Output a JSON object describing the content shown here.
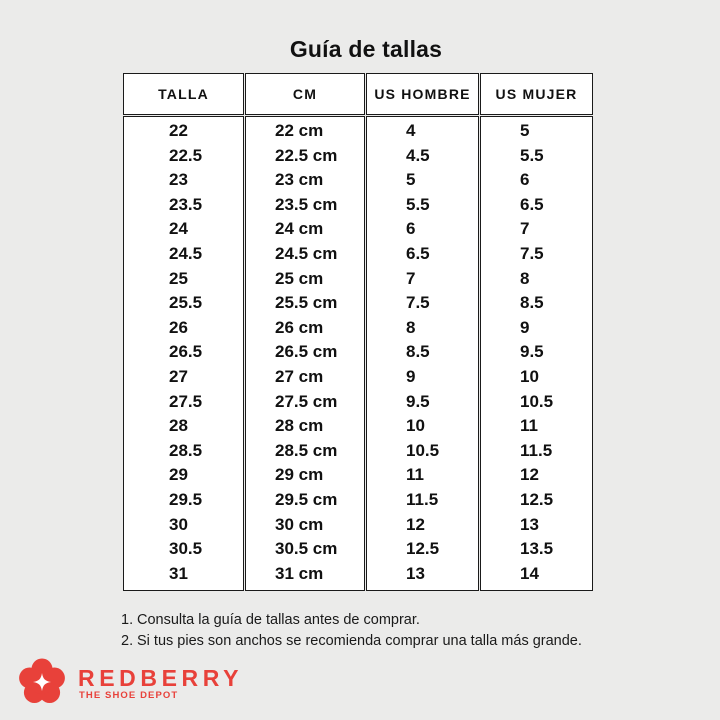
{
  "title": "Guía de tallas",
  "headers": [
    "TALLA",
    "CM",
    "US HOMBRE",
    "US MUJER"
  ],
  "rows": [
    [
      "22",
      "22 cm",
      "4",
      "5"
    ],
    [
      "22.5",
      "22.5 cm",
      "4.5",
      "5.5"
    ],
    [
      "23",
      "23 cm",
      "5",
      "6"
    ],
    [
      "23.5",
      "23.5 cm",
      "5.5",
      "6.5"
    ],
    [
      "24",
      "24 cm",
      "6",
      "7"
    ],
    [
      "24.5",
      "24.5 cm",
      "6.5",
      "7.5"
    ],
    [
      "25",
      "25 cm",
      "7",
      "8"
    ],
    [
      "25.5",
      "25.5 cm",
      "7.5",
      "8.5"
    ],
    [
      "26",
      "26 cm",
      "8",
      "9"
    ],
    [
      "26.5",
      "26.5 cm",
      "8.5",
      "9.5"
    ],
    [
      "27",
      "27 cm",
      "9",
      "10"
    ],
    [
      "27.5",
      "27.5 cm",
      "9.5",
      "10.5"
    ],
    [
      "28",
      "28 cm",
      "10",
      "11"
    ],
    [
      "28.5",
      "28.5 cm",
      "10.5",
      "11.5"
    ],
    [
      "29",
      "29 cm",
      "11",
      "12"
    ],
    [
      "29.5",
      "29.5 cm",
      "11.5",
      "12.5"
    ],
    [
      "30",
      "30 cm",
      "12",
      "13"
    ],
    [
      "30.5",
      "30.5 cm",
      "12.5",
      "13.5"
    ],
    [
      "31",
      "31 cm",
      "13",
      "14"
    ]
  ],
  "notes": [
    {
      "num": "1.",
      "text": "Consulta la guía de tallas antes de comprar."
    },
    {
      "num": "2.",
      "text": "Si tus pies son anchos se recomienda comprar una talla más grande."
    }
  ],
  "brand": {
    "name": "REDBERRY",
    "tagline": "THE SHOE DEPOT",
    "logo_icon": "flower-logo-icon",
    "color": "#e8413a"
  }
}
